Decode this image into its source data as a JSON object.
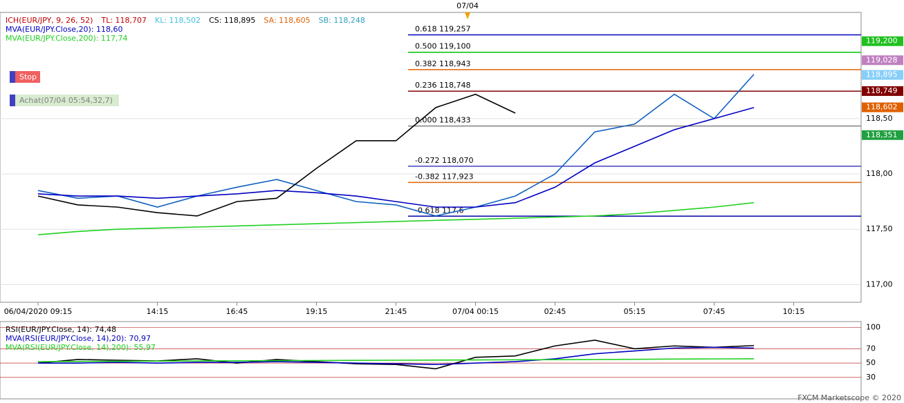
{
  "chart_data": [
    {
      "type": "line",
      "marker": "07/04",
      "header": [
        "ICH(EUR/JPY, 9, 26, 52)",
        "TL: 118,707",
        "KL: 118,502",
        "CS: 118,895",
        "SA: 118,605",
        "SB: 118,248"
      ],
      "header_colors": [
        "#c00000",
        "#c00000",
        "#40c0e0",
        "#000000",
        "#e06000",
        "#30a0c0"
      ],
      "stop_label": "Stop",
      "buy_label": "Achat(07/04 05:54,32,7)",
      "categories": [
        "06/04/2020 09:15",
        null,
        null,
        "14:15",
        null,
        "16:45",
        null,
        "19:15",
        null,
        "21:45",
        null,
        "07/04 00:15",
        null,
        "02:45",
        null,
        "05:15",
        null,
        "07:45",
        null,
        "10:15",
        null
      ],
      "ylim": [
        116.84,
        119.46
      ],
      "yticks": [
        {
          "value": 117,
          "label": "117,00"
        },
        {
          "value": 117.5,
          "label": "117,50"
        },
        {
          "value": 118,
          "label": "118,00"
        },
        {
          "value": 118.5,
          "label": "118,50"
        }
      ],
      "series": [
        {
          "color": "#1060c0",
          "values": [
            117.85,
            117.78,
            117.8,
            117.7,
            117.8,
            117.88,
            117.95,
            117.85,
            117.75,
            117.72,
            117.62,
            117.7,
            117.8,
            118.0,
            118.38,
            118.45,
            118.72,
            118.5,
            118.9,
            null,
            null
          ]
        },
        {
          "name": "MVA(EUR/JPY.Close,20): 118,60",
          "color": "#0000c0",
          "values": [
            117.82,
            117.8,
            117.8,
            117.78,
            117.8,
            117.82,
            117.85,
            117.83,
            117.8,
            117.75,
            117.7,
            117.7,
            117.74,
            117.88,
            118.1,
            118.25,
            118.4,
            118.5,
            118.6,
            null,
            null
          ]
        },
        {
          "name": "MVA(EUR/JPY.Close,200): 117,74",
          "color": "#20d020",
          "values": [
            117.45,
            117.48,
            117.5,
            117.51,
            117.52,
            117.53,
            117.54,
            117.55,
            117.56,
            117.57,
            117.58,
            117.59,
            117.6,
            117.61,
            117.62,
            117.64,
            117.67,
            117.7,
            117.74,
            null,
            null
          ]
        },
        {
          "color": "#000000",
          "values": [
            117.8,
            117.72,
            117.7,
            117.65,
            117.62,
            117.75,
            117.78,
            118.05,
            118.3,
            118.3,
            118.6,
            118.72,
            118.55,
            null,
            null,
            null,
            null,
            null,
            null,
            null,
            null
          ]
        }
      ],
      "levels": [
        {
          "label": "0.618 119,257",
          "value": 119.257,
          "color": "#0000c0"
        },
        {
          "label": "0.500 119,100",
          "value": 119.1,
          "color": "#00c000"
        },
        {
          "label": "0.382 118,943",
          "value": 118.943,
          "color": "#e06000"
        },
        {
          "label": "0.236 118,748",
          "value": 118.748,
          "color": "#800000"
        },
        {
          "label": "0.000 118,433",
          "value": 118.433,
          "color": "#808080"
        },
        {
          "label": "-0.272 118,070",
          "value": 118.07,
          "color": "#4040c0"
        },
        {
          "label": "-0.382 117,923",
          "value": 117.923,
          "color": "#e06000"
        },
        {
          "label": "-0.618 117,6",
          "value": 117.618,
          "color": "#0000a0"
        }
      ],
      "price_tags": [
        {
          "label": "119,200",
          "value": 119.2,
          "color": "#20c020"
        },
        {
          "label": "119,028",
          "value": 119.028,
          "color": "#c080c0"
        },
        {
          "label": "118,895",
          "value": 118.895,
          "color": "#87cefa"
        },
        {
          "label": "118,749",
          "value": 118.749,
          "color": "#800000"
        },
        {
          "label": "118,602",
          "value": 118.602,
          "color": "#e06000"
        },
        {
          "label": "118,351",
          "value": 118.351,
          "color": "#20a040"
        }
      ]
    },
    {
      "type": "line",
      "ylim": [
        0,
        108
      ],
      "yticks": [
        30,
        50,
        70,
        100
      ],
      "series": [
        {
          "name": "RSI(EUR/JPY.Close, 14): 74,48",
          "color": "#000000",
          "values": [
            50,
            55,
            54,
            53,
            56,
            50,
            55,
            52,
            49,
            48,
            42,
            58,
            60,
            74,
            82,
            70,
            74,
            72,
            74.5,
            null,
            null
          ]
        },
        {
          "name": "MVA(RSI(EUR/JPY.Close, 14),20): 70,97",
          "color": "#0000c0",
          "values": [
            50,
            50,
            51,
            50,
            51,
            51,
            52,
            51,
            50,
            49,
            48,
            50,
            52,
            56,
            63,
            67,
            71,
            72,
            71,
            null,
            null
          ]
        },
        {
          "name": "MVA(RSI(EUR/JPY.Close, 14),200): 55,97",
          "color": "#20d020",
          "values": [
            52,
            52.3,
            52.5,
            52.7,
            53,
            53.2,
            53.4,
            53.6,
            53.8,
            54,
            54.2,
            54.4,
            54.6,
            54.8,
            55,
            55.3,
            55.6,
            55.8,
            55.97,
            null,
            null
          ]
        }
      ]
    },
    {
      "type": "footer",
      "text": "FXCM Marketscope © 2020"
    }
  ]
}
